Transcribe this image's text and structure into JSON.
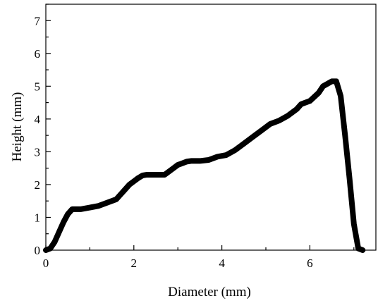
{
  "chart_data": {
    "type": "line",
    "title": "",
    "xlabel": "Diameter (mm)",
    "ylabel": "Height (mm)",
    "xlim": [
      0,
      7.5
    ],
    "ylim": [
      0,
      7.5
    ],
    "xticks": [
      0,
      2,
      4,
      6
    ],
    "yticks": [
      0,
      1,
      2,
      3,
      4,
      5,
      6,
      7
    ],
    "x_tick_labels": [
      "0",
      "2",
      "4",
      "6"
    ],
    "y_tick_labels": [
      "0",
      "1",
      "2",
      "3",
      "4",
      "5",
      "6",
      "7"
    ],
    "grid": false,
    "legend": "none",
    "line_color": "#000000",
    "series": [
      {
        "x": [
          0.0,
          0.1,
          0.2,
          0.3,
          0.4,
          0.5,
          0.6,
          0.7,
          0.8,
          1.0,
          1.2,
          1.4,
          1.6,
          1.7,
          1.8,
          1.9,
          2.0,
          2.1,
          2.2,
          2.3,
          2.5,
          2.7,
          2.8,
          2.9,
          3.0,
          3.1,
          3.2,
          3.3,
          3.5,
          3.7,
          3.9,
          4.1,
          4.3,
          4.5,
          4.7,
          4.9,
          5.1,
          5.3,
          5.5,
          5.7,
          5.8,
          6.0,
          6.2,
          6.3,
          6.5,
          6.6,
          6.7,
          6.8,
          6.9,
          7.0,
          7.1,
          7.2
        ],
        "y": [
          0.0,
          0.05,
          0.25,
          0.55,
          0.85,
          1.1,
          1.25,
          1.25,
          1.25,
          1.3,
          1.35,
          1.45,
          1.55,
          1.7,
          1.85,
          2.0,
          2.1,
          2.2,
          2.28,
          2.3,
          2.3,
          2.3,
          2.4,
          2.5,
          2.6,
          2.65,
          2.7,
          2.72,
          2.72,
          2.75,
          2.85,
          2.9,
          3.05,
          3.25,
          3.45,
          3.65,
          3.85,
          3.95,
          4.1,
          4.3,
          4.45,
          4.55,
          4.8,
          5.0,
          5.15,
          5.15,
          4.7,
          3.5,
          2.2,
          0.8,
          0.05,
          0.0
        ]
      }
    ]
  }
}
